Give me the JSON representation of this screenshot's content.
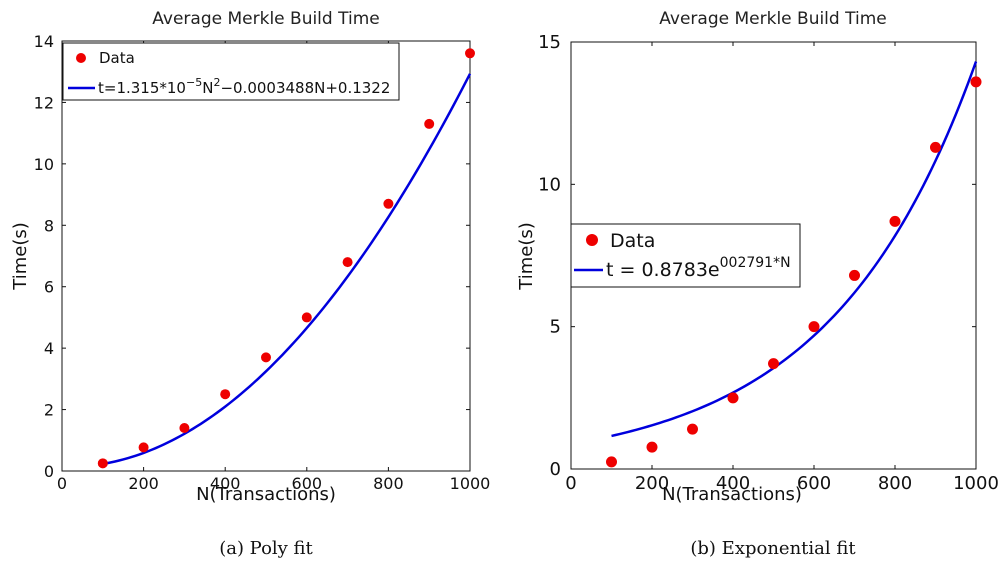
{
  "chart_data": [
    {
      "type": "scatter",
      "title": "Average Merkle Build Time",
      "xlabel": "N(Transactions)",
      "ylabel": "Time(s)",
      "caption": "(a) Poly fit",
      "xlim": [
        0,
        1000
      ],
      "ylim": [
        0,
        14
      ],
      "xticks": [
        0,
        200,
        400,
        600,
        800,
        1000
      ],
      "yticks": [
        0,
        2,
        4,
        6,
        8,
        10,
        12,
        14
      ],
      "grid": false,
      "legend_position": "top-left",
      "series": [
        {
          "name": "Data",
          "kind": "markers",
          "color": "#ee0000",
          "x": [
            100,
            200,
            300,
            400,
            500,
            600,
            700,
            800,
            900,
            1000
          ],
          "y": [
            0.25,
            0.77,
            1.4,
            2.5,
            3.7,
            5.0,
            6.8,
            8.7,
            11.3,
            13.6
          ]
        },
        {
          "name_parts": [
            "t=1.315*10",
            "−5",
            "N",
            "2",
            "−0.0003488N+0.1322"
          ],
          "kind": "fit",
          "model": "poly2",
          "coefficients": [
            1.315e-05,
            -0.0003488,
            0.1322
          ],
          "x_range": [
            100,
            1000
          ],
          "color": "#0000dd"
        }
      ]
    },
    {
      "type": "scatter",
      "title": "Average Merkle Build Time",
      "xlabel": "N(Transactions)",
      "ylabel": "Time(s)",
      "caption": "(b) Exponential fit",
      "xlim": [
        0,
        1000
      ],
      "ylim": [
        0,
        15
      ],
      "xticks": [
        0,
        200,
        400,
        600,
        800,
        1000
      ],
      "yticks": [
        0,
        5,
        10,
        15
      ],
      "grid": false,
      "legend_position": "center-left",
      "series": [
        {
          "name": "Data",
          "kind": "markers",
          "color": "#ee0000",
          "x": [
            100,
            200,
            300,
            400,
            500,
            600,
            700,
            800,
            900,
            1000
          ],
          "y": [
            0.25,
            0.77,
            1.4,
            2.5,
            3.7,
            5.0,
            6.8,
            8.7,
            11.3,
            13.6
          ]
        },
        {
          "name_parts": [
            "t = 0.8783e",
            "002791*N"
          ],
          "kind": "fit",
          "model": "exp",
          "coefficients": [
            0.8783,
            0.002791
          ],
          "x_range": [
            100,
            1000
          ],
          "color": "#0000dd"
        }
      ]
    }
  ]
}
